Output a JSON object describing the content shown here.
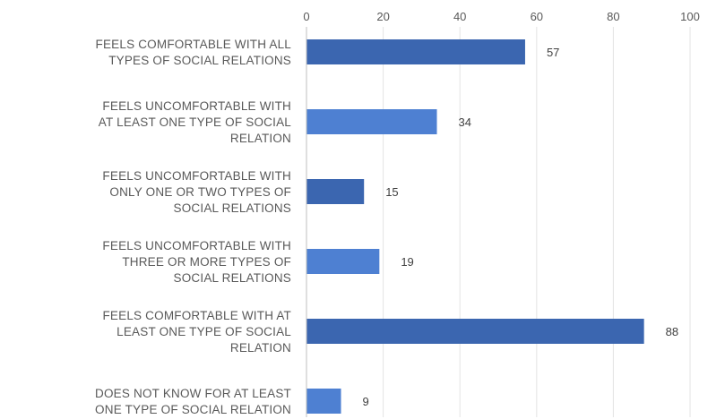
{
  "chart_data": {
    "type": "bar",
    "orientation": "horizontal",
    "categories": [
      [
        "FEELS COMFORTABLE WITH ALL",
        "TYPES OF SOCIAL RELATIONS"
      ],
      [
        "FEELS UNCOMFORTABLE WITH",
        "AT LEAST ONE TYPE OF SOCIAL",
        "RELATION"
      ],
      [
        "FEELS UNCOMFORTABLE WITH",
        "ONLY ONE OR TWO TYPES OF",
        "SOCIAL RELATIONS"
      ],
      [
        "FEELS UNCOMFORTABLE WITH",
        "THREE OR MORE TYPES OF",
        "SOCIAL RELATIONS"
      ],
      [
        "FEELS COMFORTABLE WITH AT",
        "LEAST ONE TYPE OF SOCIAL",
        "RELATION"
      ],
      [
        "DOES NOT KNOW FOR AT LEAST",
        "ONE TYPE OF SOCIAL RELATION"
      ]
    ],
    "values": [
      57,
      34,
      15,
      19,
      88,
      9
    ],
    "data_labels": [
      "57",
      "34",
      "15",
      "19",
      "88",
      "9"
    ],
    "xlim": [
      0,
      100
    ],
    "x_ticks": [
      "0",
      "20",
      "40",
      "60",
      "80",
      "100"
    ],
    "x_axis_position": "top",
    "grid": true,
    "bar_colors": [
      "#3b66b0",
      "#4e80d2",
      "#3b66b0",
      "#4e80d2",
      "#3b66b0",
      "#4e80d2"
    ],
    "title": "",
    "xlabel": "",
    "ylabel": ""
  }
}
